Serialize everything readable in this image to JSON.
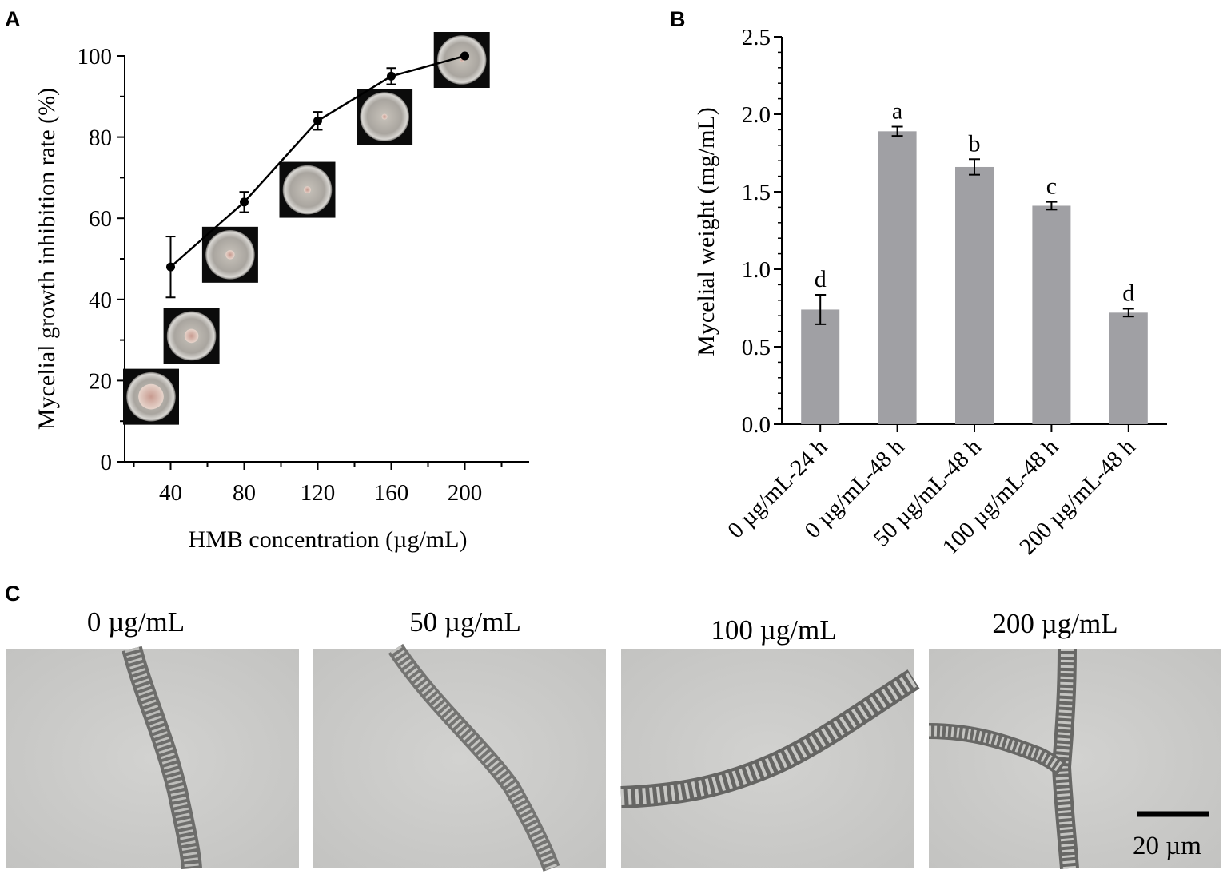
{
  "panels": {
    "a": {
      "label": "A"
    },
    "b": {
      "label": "B"
    },
    "c": {
      "label": "C"
    }
  },
  "chart_data": [
    {
      "type": "line",
      "panel": "A",
      "x": [
        40,
        80,
        120,
        160,
        200
      ],
      "y": [
        48,
        64,
        84,
        95,
        100
      ],
      "error": [
        7.5,
        2.5,
        2.2,
        2.0,
        0
      ],
      "xlabel": "HMB concentration (µg/mL)",
      "ylabel": "Mycelial growth inhibition rate (%)",
      "xticks": [
        "40",
        "80",
        "120",
        "160",
        "200"
      ],
      "yticks": [
        "0",
        "20",
        "40",
        "60",
        "80",
        "100"
      ],
      "xlim": [
        15,
        235
      ],
      "ylim": [
        0,
        100
      ],
      "inset_images": "Petri dish photographs at each concentration",
      "colors": {
        "line": "#000000",
        "marker": "#000000"
      }
    },
    {
      "type": "bar",
      "panel": "B",
      "categories": [
        "0 µg/mL-24 h",
        "0 µg/mL-48 h",
        "50 µg/mL-48 h",
        "100 µg/mL-48 h",
        "200 µg/mL-48 h"
      ],
      "values": [
        0.74,
        1.89,
        1.66,
        1.41,
        0.72
      ],
      "error": [
        0.095,
        0.03,
        0.05,
        0.025,
        0.025
      ],
      "significance": [
        "d",
        "a",
        "b",
        "c",
        "d"
      ],
      "ylabel": "Mycelial weight (mg/mL)",
      "yticks": [
        "0.0",
        "0.5",
        "1.0",
        "1.5",
        "2.0",
        "2.5"
      ],
      "ylim": [
        0,
        2.5
      ],
      "colors": {
        "bar": "#a0a0a4"
      }
    }
  ],
  "micrographs": [
    {
      "title": "0 µg/mL"
    },
    {
      "title": "50 µg/mL"
    },
    {
      "title": "100 µg/mL"
    },
    {
      "title": "200 µg/mL"
    }
  ],
  "scale_bar": {
    "label": "20 µm"
  }
}
